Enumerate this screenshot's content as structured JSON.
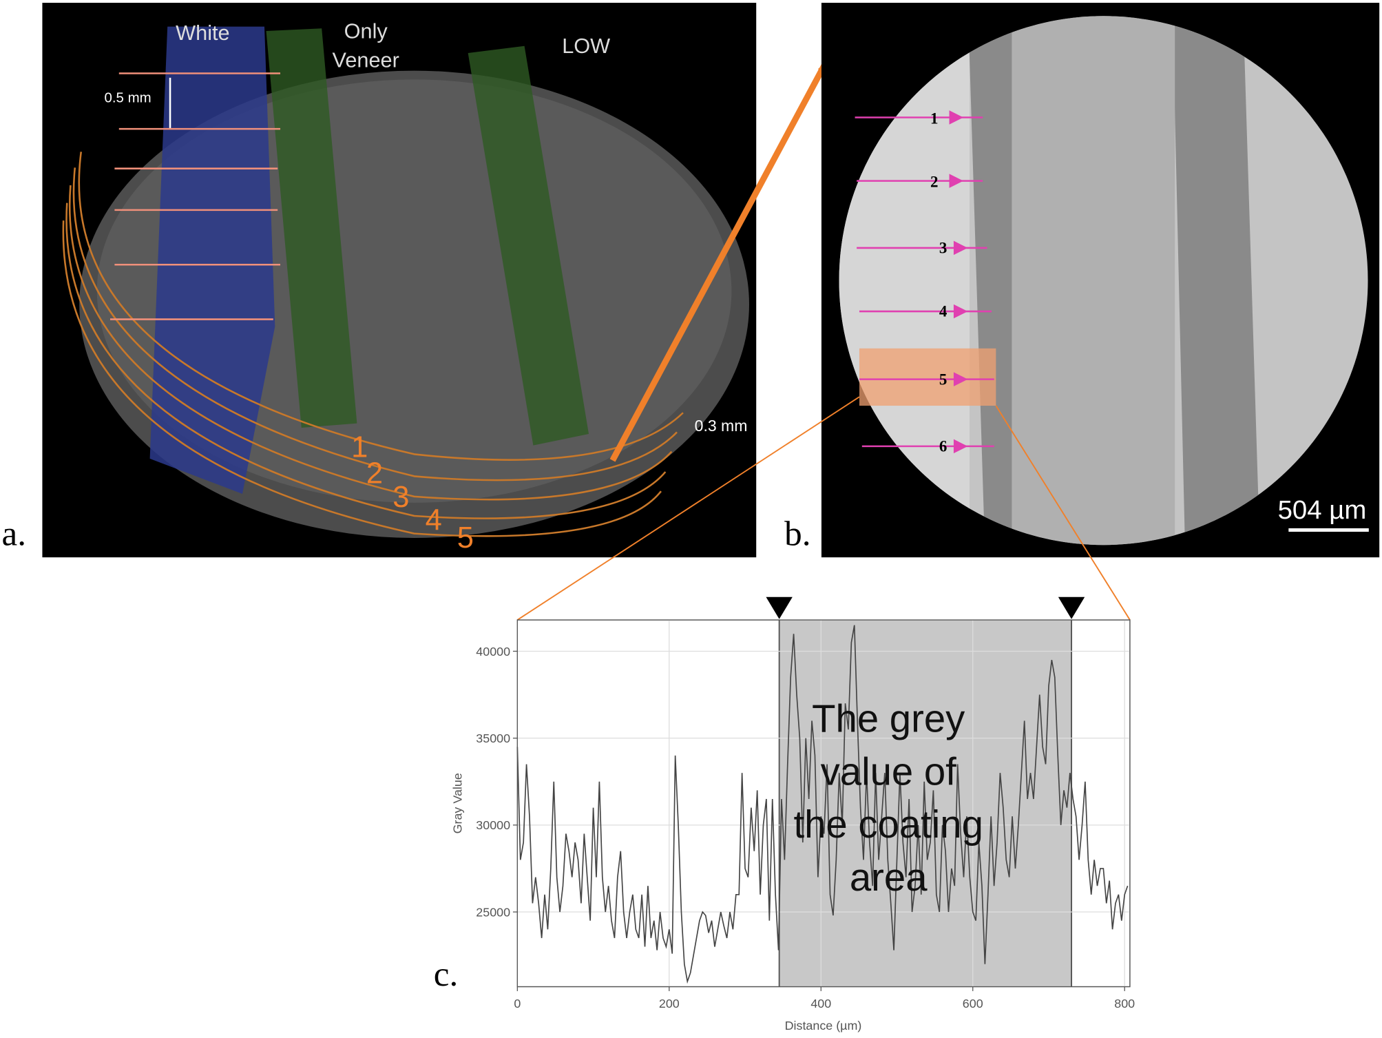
{
  "panel_a": {
    "label": "a.",
    "white": "White",
    "only_veneer": [
      "Only",
      "Veneer"
    ],
    "low": "LOW",
    "scale_05": "0.5 mm",
    "scale_03": "0.3 mm",
    "layers": [
      "1",
      "2",
      "3",
      "4",
      "5"
    ]
  },
  "panel_b": {
    "label": "b.",
    "lines": [
      "1",
      "2",
      "3",
      "4",
      "5",
      "6"
    ],
    "scale_bar": "504 µm"
  },
  "chart_data": {
    "type": "line",
    "label": "c.",
    "xlabel": "Distance (µm)",
    "ylabel": "Gray Value",
    "annotation_lines": [
      "The grey",
      "value of",
      "the coating",
      "area"
    ],
    "highlight": [
      345,
      730
    ],
    "xlim": [
      0,
      807
    ],
    "xticks": [
      0,
      200,
      400,
      600,
      800
    ],
    "ylim": [
      20700,
      41800
    ],
    "yticks": [
      25000,
      30000,
      35000,
      40000
    ],
    "grid": true,
    "color": "#444444",
    "x": [
      0,
      4,
      8,
      12,
      16,
      20,
      24,
      28,
      32,
      36,
      40,
      44,
      48,
      52,
      56,
      60,
      64,
      68,
      72,
      76,
      80,
      84,
      88,
      92,
      96,
      100,
      104,
      108,
      112,
      116,
      120,
      124,
      128,
      132,
      136,
      140,
      144,
      148,
      152,
      156,
      160,
      164,
      168,
      172,
      176,
      180,
      184,
      188,
      192,
      196,
      200,
      204,
      208,
      212,
      216,
      220,
      224,
      228,
      232,
      236,
      240,
      244,
      248,
      252,
      256,
      260,
      264,
      268,
      272,
      276,
      280,
      284,
      288,
      292,
      296,
      300,
      304,
      308,
      312,
      316,
      320,
      324,
      328,
      332,
      336,
      340,
      344,
      348,
      352,
      356,
      360,
      364,
      368,
      372,
      376,
      380,
      384,
      388,
      392,
      396,
      400,
      404,
      408,
      412,
      416,
      420,
      424,
      428,
      432,
      436,
      440,
      444,
      448,
      452,
      456,
      460,
      464,
      468,
      472,
      476,
      480,
      484,
      488,
      492,
      496,
      500,
      504,
      508,
      512,
      516,
      520,
      524,
      528,
      532,
      536,
      540,
      544,
      548,
      552,
      556,
      560,
      564,
      568,
      572,
      576,
      580,
      584,
      588,
      592,
      596,
      600,
      604,
      608,
      612,
      616,
      620,
      624,
      628,
      632,
      636,
      640,
      644,
      648,
      652,
      656,
      660,
      664,
      668,
      672,
      676,
      680,
      684,
      688,
      692,
      696,
      700,
      704,
      708,
      712,
      716,
      720,
      724,
      728,
      732,
      736,
      740,
      744,
      748,
      752,
      756,
      760,
      764,
      768,
      772,
      776,
      780,
      784,
      788,
      792,
      796,
      800,
      804
    ],
    "values": [
      34500,
      28000,
      29000,
      33500,
      30500,
      25500,
      27000,
      25500,
      23500,
      26000,
      24000,
      27500,
      32500,
      27000,
      25000,
      26500,
      29500,
      28500,
      27000,
      29000,
      28000,
      25500,
      29500,
      27000,
      24500,
      31000,
      27000,
      32500,
      27000,
      25000,
      26500,
      24500,
      23500,
      27000,
      28500,
      25000,
      23500,
      25000,
      26000,
      24000,
      23500,
      26000,
      23000,
      26500,
      23500,
      24500,
      22800,
      25000,
      23500,
      23000,
      24000,
      22600,
      34000,
      30000,
      25000,
      22000,
      21000,
      21500,
      22500,
      23500,
      24500,
      25000,
      24800,
      23800,
      24500,
      23000,
      24000,
      25000,
      24200,
      23500,
      25000,
      24000,
      26000,
      26000,
      33000,
      27500,
      27000,
      31000,
      28500,
      32000,
      26000,
      30000,
      31500,
      24500,
      31500,
      26000,
      22800,
      31500,
      28000,
      33500,
      38500,
      41000,
      37500,
      35000,
      29000,
      35000,
      31500,
      36000,
      34000,
      27000,
      30500,
      29500,
      33500,
      26000,
      24800,
      28000,
      33000,
      30000,
      37000,
      35500,
      40500,
      41500,
      36000,
      31000,
      28000,
      33000,
      29000,
      26500,
      33000,
      28000,
      30500,
      33000,
      28000,
      25500,
      22800,
      28000,
      33000,
      29000,
      27000,
      31500,
      25000,
      26500,
      30000,
      26000,
      32500,
      28000,
      29000,
      32000,
      26000,
      25000,
      30000,
      28500,
      25000,
      27500,
      26500,
      33500,
      29500,
      27000,
      30500,
      27000,
      25000,
      24500,
      29000,
      26500,
      22000,
      26000,
      30500,
      26500,
      29000,
      33000,
      31000,
      28000,
      27000,
      30500,
      27500,
      30000,
      33000,
      36000,
      31500,
      33000,
      31500,
      34500,
      37500,
      34500,
      33500,
      38000,
      39500,
      38500,
      34000,
      30000,
      32000,
      31000,
      33000,
      31500,
      30500,
      28000,
      30000,
      32500,
      28000,
      26000,
      28000,
      26500,
      27500,
      27500,
      25500,
      26800,
      24000,
      25500,
      26000,
      24500,
      26000,
      26500
    ]
  }
}
